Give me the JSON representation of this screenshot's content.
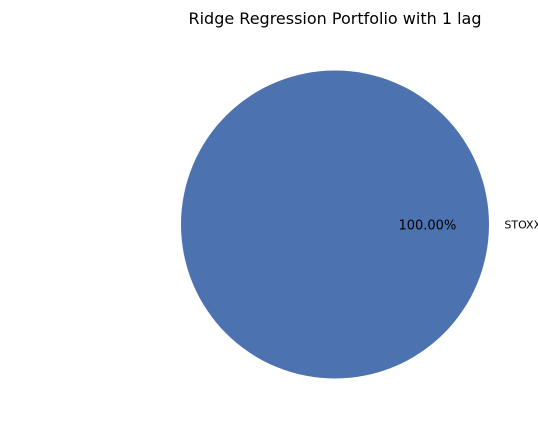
{
  "chart_data": {
    "type": "pie",
    "title": "Ridge Regression Portfolio with 1 lag",
    "slices": [
      {
        "label": "STOXX Europe Health Care",
        "value": 100.0,
        "percent_label": "100.00%",
        "color": "#4c72b0"
      }
    ],
    "legend": "none"
  }
}
